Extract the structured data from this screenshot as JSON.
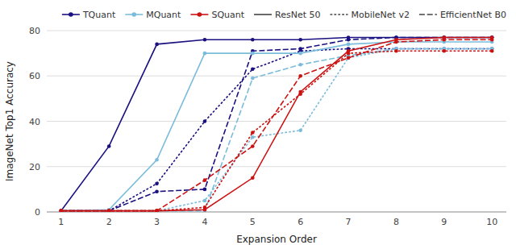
{
  "chart_data": {
    "type": "line",
    "xlabel": "Expansion Order",
    "ylabel": "ImageNet Top1 Accuracy",
    "x": [
      1,
      2,
      3,
      4,
      5,
      6,
      7,
      8,
      9,
      10
    ],
    "xlim": [
      0.7,
      10.3
    ],
    "xticks": [
      1,
      2,
      3,
      4,
      5,
      6,
      7,
      8,
      9,
      10
    ],
    "ylim": [
      0,
      80
    ],
    "yticks": [
      0,
      20,
      40,
      60,
      80
    ],
    "grid": true,
    "legend": "top-right",
    "series": [
      {
        "color": "#1a1080",
        "line_style": "solid",
        "marker": "circle",
        "values": [
          0.5,
          29,
          74,
          76,
          76,
          76,
          77,
          77,
          77,
          77
        ]
      },
      {
        "color": "#1a1080",
        "line_style": "dotted",
        "marker": "circle",
        "values": [
          0.5,
          0.5,
          12.5,
          40,
          63,
          71,
          72,
          72,
          72,
          72
        ]
      },
      {
        "color": "#1a1080",
        "line_style": "dashed",
        "marker": "circle",
        "values": [
          0.5,
          0.5,
          9,
          10,
          71,
          72,
          76,
          77,
          77,
          77
        ]
      },
      {
        "color": "#7bbcdc",
        "line_style": "solid",
        "marker": "circle",
        "values": [
          0.5,
          1,
          23,
          70,
          70,
          70,
          74,
          75,
          75,
          75
        ]
      },
      {
        "color": "#7bbcdc",
        "line_style": "dotted",
        "marker": "circle",
        "values": [
          0.5,
          0.5,
          0.5,
          5,
          33,
          36,
          68,
          72,
          72,
          72
        ]
      },
      {
        "color": "#7bbcdc",
        "line_style": "dashed",
        "marker": "circle",
        "values": [
          0.5,
          0.5,
          0.5,
          0.5,
          59,
          65,
          69,
          72,
          72,
          72
        ]
      },
      {
        "color": "#cc1111",
        "line_style": "solid",
        "marker": "circle",
        "values": [
          0.5,
          0.5,
          0.5,
          1,
          15,
          53,
          71,
          76,
          77,
          77
        ]
      },
      {
        "color": "#cc1111",
        "line_style": "dotted",
        "marker": "circle",
        "values": [
          0.5,
          0.5,
          0.5,
          2,
          35,
          52,
          70,
          71,
          71,
          71
        ]
      },
      {
        "color": "#cc1111",
        "line_style": "dashed",
        "marker": "circle",
        "values": [
          0.5,
          0.5,
          0.5,
          14,
          29,
          60,
          68,
          75,
          76,
          76
        ]
      }
    ],
    "legend_items": [
      {
        "label": "TQuant",
        "color": "#1a1080",
        "marker": "circle",
        "line_style": "solid"
      },
      {
        "label": "MQuant",
        "color": "#7bbcdc",
        "marker": "circle",
        "line_style": "solid"
      },
      {
        "label": "SQuant",
        "color": "#cc1111",
        "marker": "circle",
        "line_style": "solid"
      },
      {
        "label": "ResNet 50",
        "color": "#444444",
        "line_style": "solid"
      },
      {
        "label": "MobileNet v2",
        "color": "#444444",
        "line_style": "dotted"
      },
      {
        "label": "EfficientNet B0",
        "color": "#444444",
        "line_style": "dashed"
      }
    ]
  }
}
